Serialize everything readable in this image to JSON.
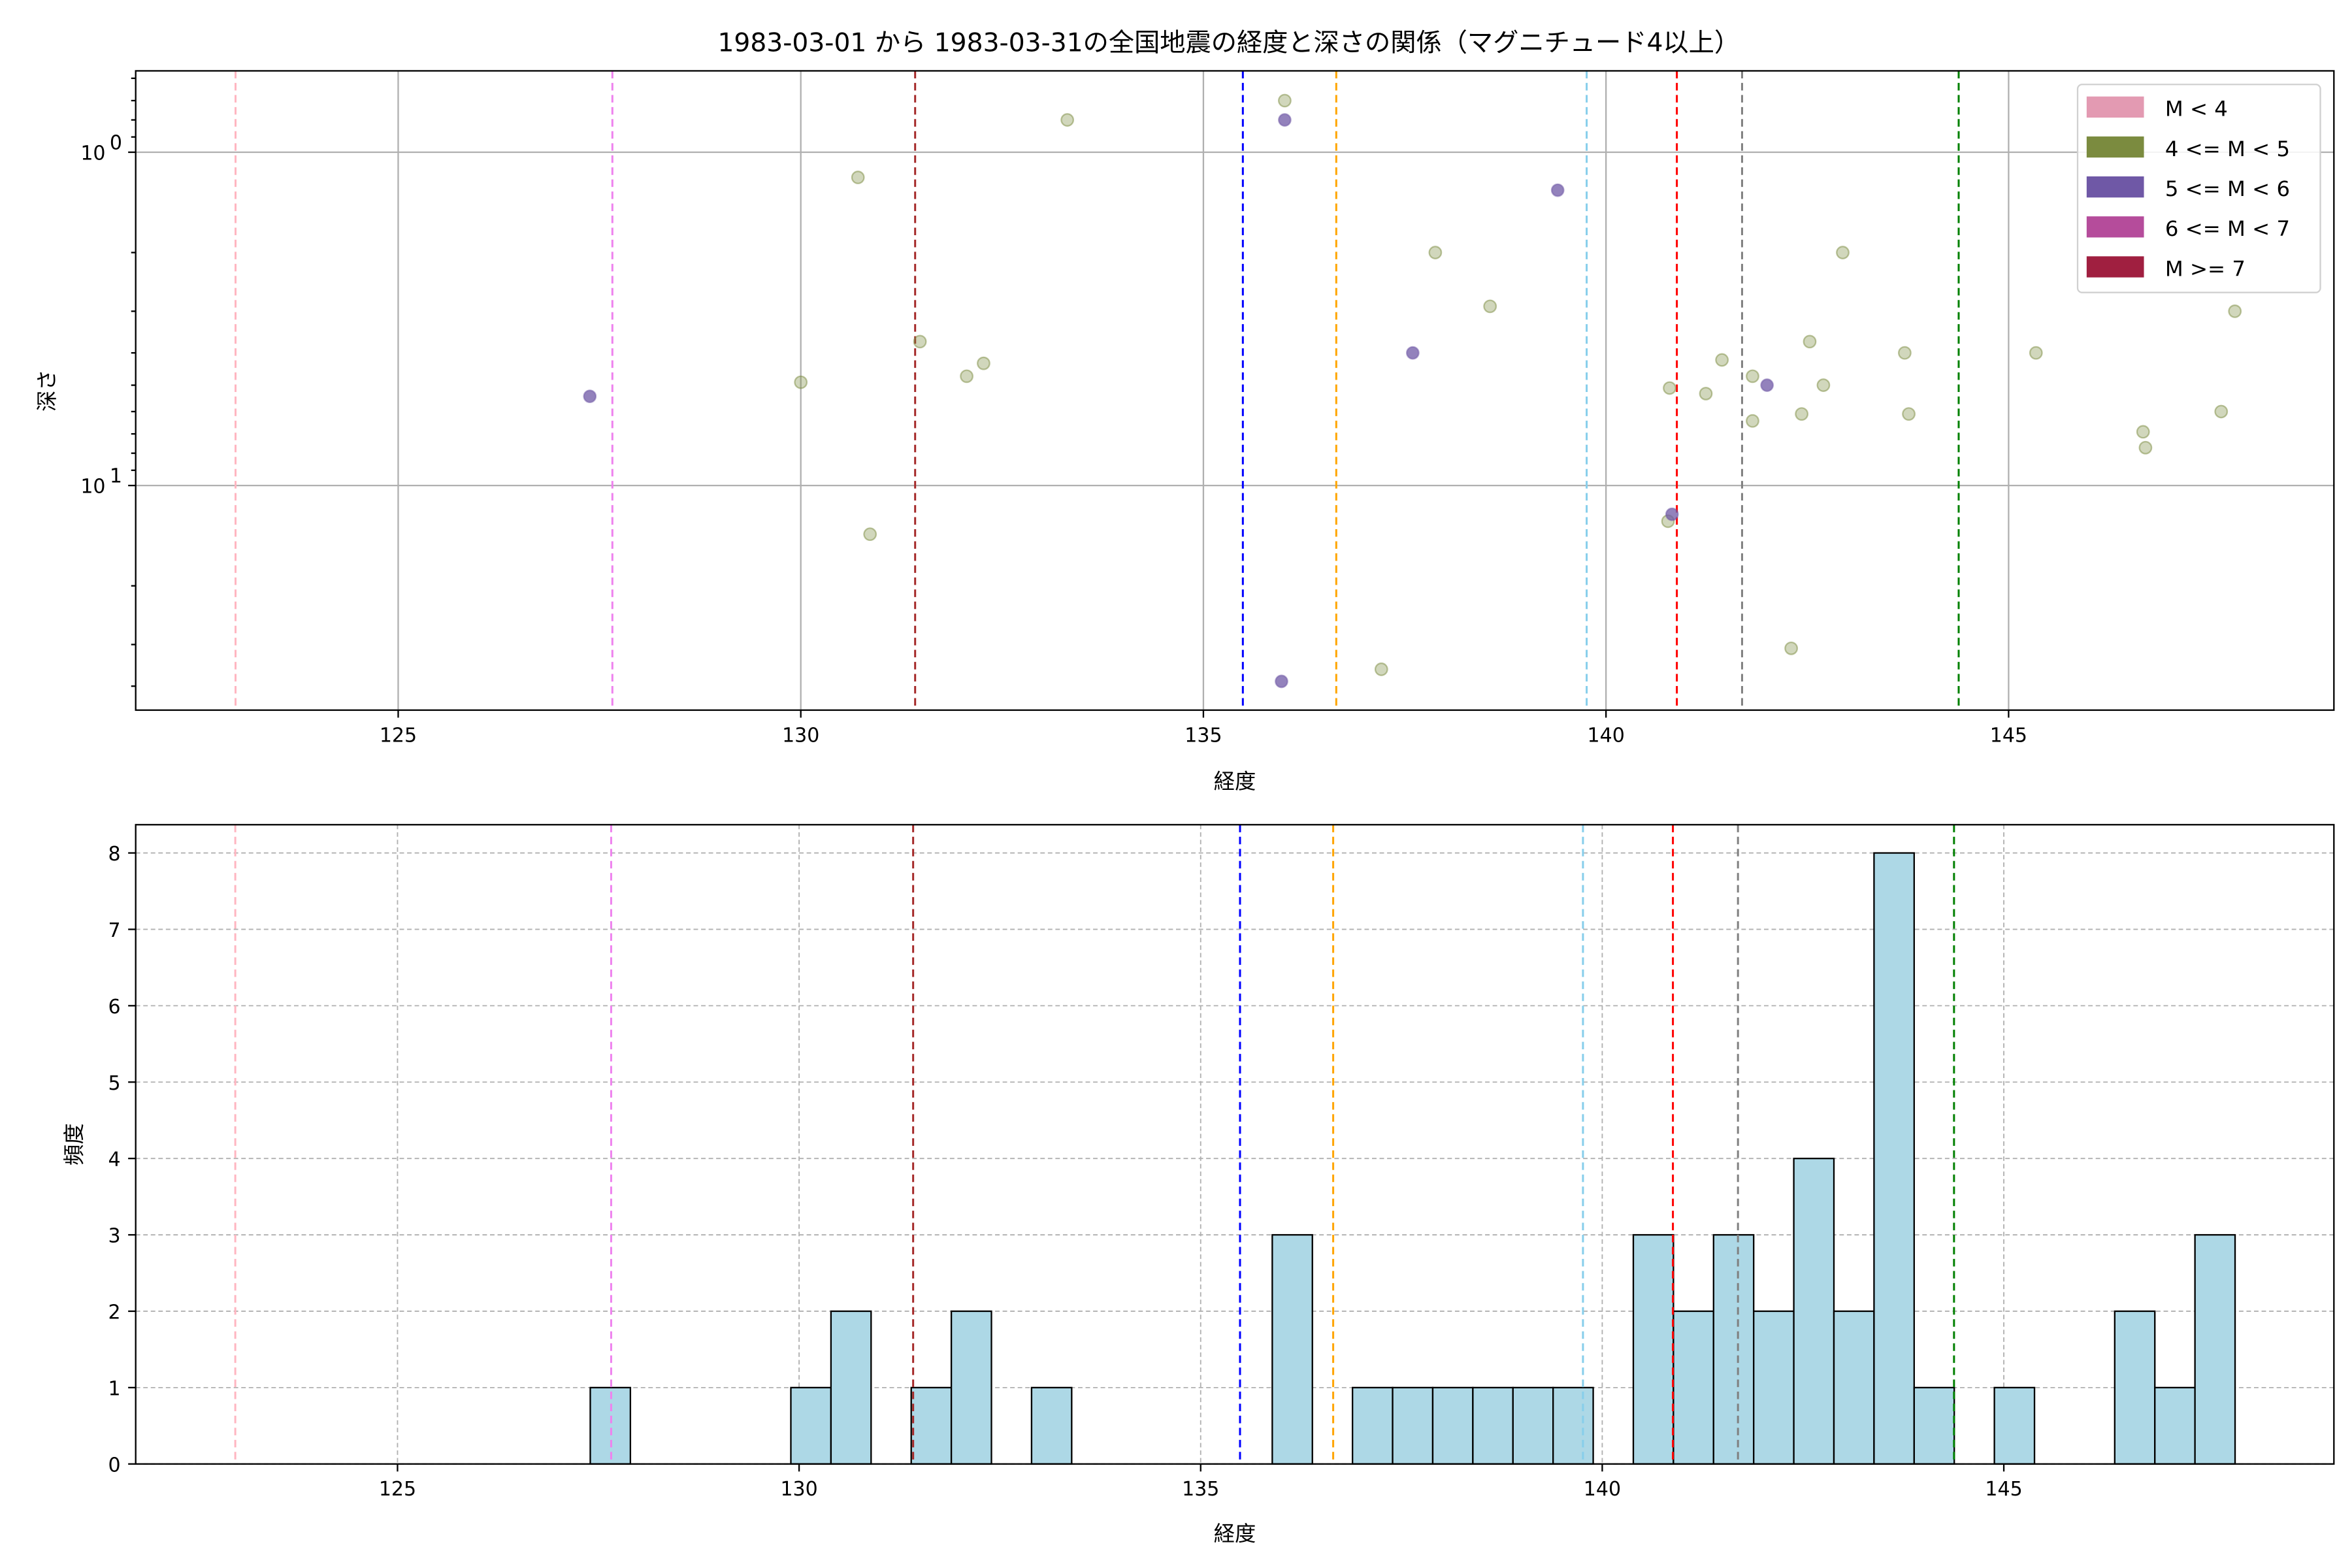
{
  "chart_data": [
    {
      "type": "scatter",
      "title": "1983-03-01 から 1983-03-31の全国地震の経度と深さの関係（マグニチュード4以上）",
      "xlabel": "経度",
      "ylabel": "深さ",
      "xlim": [
        121.74,
        149.04
      ],
      "ylim": [
        47.2,
        0.57
      ],
      "yscale": "log",
      "y_inverted": true,
      "xticks": [
        125,
        130,
        135,
        140,
        145
      ],
      "yticks": [
        {
          "value": 1,
          "label": "10",
          "exp": "0"
        },
        {
          "value": 10,
          "label": "10",
          "exp": "1"
        }
      ],
      "grid": true,
      "legend": {
        "placement": "top-right",
        "entries": [
          {
            "label": "M < 4",
            "color": "#e39ab2"
          },
          {
            "label": "4 <= M < 5",
            "color": "#7b8b3f"
          },
          {
            "label": "5 <= M < 6",
            "color": "#6f58a6"
          },
          {
            "label": "6 <= M < 7",
            "color": "#b54c9b"
          },
          {
            "label": "M >= 7",
            "color": "#a01f40"
          }
        ]
      },
      "series": [
        {
          "name": "4 <= M < 5",
          "color": "#7b8b3f",
          "points": [
            [
              130.0,
              4.9
            ],
            [
              130.71,
              1.19
            ],
            [
              130.86,
              14.0
            ],
            [
              131.48,
              3.7
            ],
            [
              132.06,
              4.7
            ],
            [
              132.27,
              4.3
            ],
            [
              133.31,
              0.8
            ],
            [
              136.01,
              0.7
            ],
            [
              137.21,
              35.6
            ],
            [
              137.88,
              2.0
            ],
            [
              138.56,
              2.9
            ],
            [
              140.79,
              5.1
            ],
            [
              140.77,
              12.8
            ],
            [
              141.24,
              5.3
            ],
            [
              141.44,
              4.2
            ],
            [
              141.82,
              4.7
            ],
            [
              141.82,
              6.4
            ],
            [
              142.3,
              30.8
            ],
            [
              142.43,
              6.1
            ],
            [
              142.53,
              3.7
            ],
            [
              142.7,
              5.0
            ],
            [
              142.94,
              2.0
            ],
            [
              143.71,
              4.0
            ],
            [
              143.76,
              6.1
            ],
            [
              145.34,
              4.0
            ],
            [
              146.67,
              6.9
            ],
            [
              146.7,
              7.7
            ],
            [
              147.64,
              6.0
            ],
            [
              147.81,
              3.0
            ]
          ]
        },
        {
          "name": "5 <= M < 6",
          "color": "#6f58a6",
          "points": [
            [
              127.38,
              5.4
            ],
            [
              136.01,
              0.8
            ],
            [
              135.97,
              38.7
            ],
            [
              137.6,
              4.0
            ],
            [
              139.4,
              1.3
            ],
            [
              140.82,
              12.2
            ],
            [
              142.0,
              5.0
            ]
          ]
        }
      ],
      "reference_lines": [
        {
          "x": 122.98,
          "color": "#ffb6c1"
        },
        {
          "x": 127.66,
          "color": "#ee82ee"
        },
        {
          "x": 131.42,
          "color": "#a52a2a"
        },
        {
          "x": 135.49,
          "color": "#0000ff"
        },
        {
          "x": 136.65,
          "color": "#ffa500"
        },
        {
          "x": 139.76,
          "color": "#87ceeb"
        },
        {
          "x": 140.88,
          "color": "#ff0000"
        },
        {
          "x": 141.69,
          "color": "#808080"
        },
        {
          "x": 144.38,
          "color": "#008000"
        }
      ]
    },
    {
      "type": "bar",
      "subtype": "histogram",
      "xlabel": "経度",
      "ylabel": "頻度",
      "xlim": [
        121.74,
        149.11
      ],
      "ylim": [
        0,
        8.37
      ],
      "xticks": [
        125,
        130,
        135,
        140,
        145
      ],
      "yticks": [
        0,
        1,
        2,
        3,
        4,
        5,
        6,
        7,
        8
      ],
      "grid": true,
      "bar_color": "#add8e6",
      "bin_start": 127.4,
      "bin_width": 0.4995,
      "counts": [
        1,
        0,
        0,
        0,
        0,
        1,
        2,
        0,
        1,
        2,
        0,
        1,
        0,
        0,
        0,
        0,
        0,
        3,
        0,
        1,
        1,
        1,
        1,
        1,
        1,
        0,
        3,
        2,
        3,
        2,
        4,
        2,
        8,
        1,
        0,
        1,
        0,
        0,
        2,
        1,
        3
      ],
      "reference_lines": [
        {
          "x": 122.98,
          "color": "#ffb6c1"
        },
        {
          "x": 127.66,
          "color": "#ee82ee"
        },
        {
          "x": 131.42,
          "color": "#a52a2a"
        },
        {
          "x": 135.49,
          "color": "#0000ff"
        },
        {
          "x": 136.65,
          "color": "#ffa500"
        },
        {
          "x": 139.76,
          "color": "#87ceeb"
        },
        {
          "x": 140.88,
          "color": "#ff0000"
        },
        {
          "x": 141.69,
          "color": "#808080"
        },
        {
          "x": 144.38,
          "color": "#008000"
        }
      ]
    }
  ]
}
